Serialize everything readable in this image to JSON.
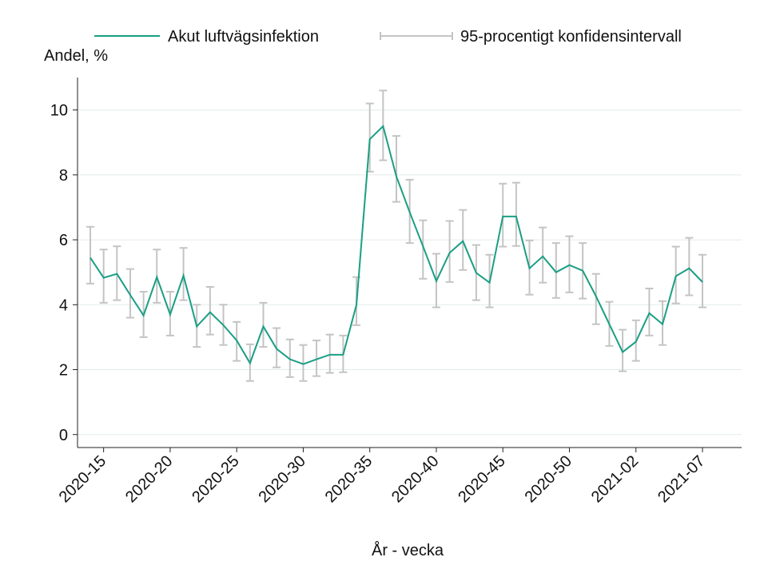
{
  "chart_data": {
    "type": "line",
    "y_label": "Andel, %",
    "x_label": "År - vecka",
    "categories": [
      null,
      "2020-15",
      null,
      null,
      null,
      null,
      "2020-20",
      null,
      null,
      null,
      null,
      "2020-25",
      null,
      null,
      null,
      null,
      "2020-30",
      null,
      null,
      null,
      null,
      "2020-35",
      null,
      null,
      null,
      null,
      "2020-40",
      null,
      null,
      null,
      null,
      "2020-45",
      null,
      null,
      null,
      null,
      "2020-50",
      null,
      null,
      null,
      null,
      "2021-02",
      null,
      null,
      null,
      null,
      "2021-07"
    ],
    "series": [
      {
        "name": "Akut luftvägsinfektion",
        "color": "#1a9e84",
        "values": [
          5.45,
          4.83,
          4.95,
          4.3,
          3.67,
          4.85,
          3.7,
          4.9,
          3.33,
          3.77,
          3.37,
          2.9,
          2.2,
          3.33,
          2.64,
          2.32,
          2.17,
          2.32,
          2.46,
          2.46,
          4.0,
          9.1,
          9.5,
          7.95,
          6.85,
          5.8,
          4.73,
          5.6,
          5.96,
          4.98,
          4.68,
          6.72,
          6.72,
          5.12,
          5.49,
          5.0,
          5.22,
          5.05,
          4.26,
          3.4,
          2.54,
          2.86,
          3.74,
          3.4,
          4.88,
          5.12,
          4.7
        ]
      },
      {
        "name": "95-procentigt konfidensintervall",
        "color": "#c4c4c4",
        "lower": [
          4.65,
          4.06,
          4.14,
          3.6,
          3.0,
          4.06,
          3.05,
          4.14,
          2.7,
          3.08,
          2.76,
          2.27,
          1.65,
          2.7,
          2.07,
          1.77,
          1.65,
          1.8,
          1.9,
          1.92,
          3.37,
          8.1,
          8.45,
          7.17,
          5.9,
          4.8,
          3.92,
          4.7,
          5.07,
          4.14,
          3.92,
          5.79,
          5.81,
          4.31,
          4.68,
          4.21,
          4.38,
          4.19,
          3.4,
          2.73,
          1.95,
          2.27,
          3.05,
          2.76,
          4.04,
          4.29,
          3.92
        ],
        "upper": [
          6.4,
          5.7,
          5.8,
          5.1,
          4.4,
          5.7,
          4.4,
          5.75,
          4.0,
          4.55,
          4.0,
          3.47,
          2.78,
          4.06,
          3.28,
          2.93,
          2.76,
          2.9,
          3.08,
          3.05,
          4.85,
          10.2,
          10.6,
          9.2,
          7.85,
          6.6,
          5.57,
          6.58,
          6.92,
          5.84,
          5.54,
          7.73,
          7.76,
          5.98,
          6.38,
          5.9,
          6.11,
          5.9,
          4.95,
          4.09,
          3.23,
          3.52,
          4.5,
          4.11,
          5.79,
          6.06,
          5.54
        ]
      }
    ],
    "ylim": [
      -0.4,
      11.0
    ],
    "yticks": [
      0,
      2,
      4,
      6,
      8,
      10
    ],
    "grid": true
  }
}
